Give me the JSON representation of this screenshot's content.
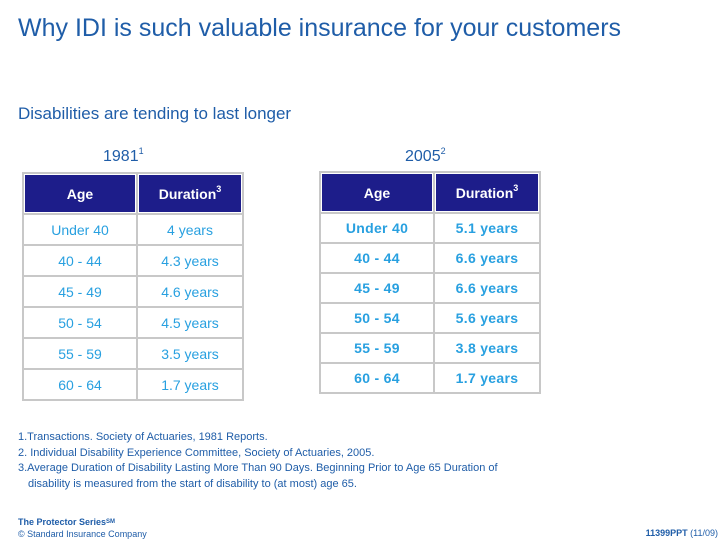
{
  "title": "Why IDI is such valuable insurance for your customers",
  "subtitle": "Disabilities are tending to last longer",
  "table_1981": {
    "year": "1981",
    "year_note": "1",
    "headers": {
      "age": "Age",
      "duration": "Duration",
      "duration_note": "3"
    },
    "rows": [
      {
        "age": "Under 40",
        "duration": "4 years"
      },
      {
        "age": "40 - 44",
        "duration": "4.3 years"
      },
      {
        "age": "45 - 49",
        "duration": "4.6 years"
      },
      {
        "age": "50 - 54",
        "duration": "4.5 years"
      },
      {
        "age": "55 - 59",
        "duration": "3.5 years"
      },
      {
        "age": "60 - 64",
        "duration": "1.7 years"
      }
    ]
  },
  "table_2005": {
    "year": "2005",
    "year_note": "2",
    "headers": {
      "age": "Age",
      "duration": "Duration",
      "duration_note": "3"
    },
    "rows": [
      {
        "age": "Under 40",
        "duration": "5.1 years"
      },
      {
        "age": "40 - 44",
        "duration": "6.6 years"
      },
      {
        "age": "45 - 49",
        "duration": "6.6 years"
      },
      {
        "age": "50 - 54",
        "duration": "5.6 years"
      },
      {
        "age": "55 - 59",
        "duration": "3.8 years"
      },
      {
        "age": "60 - 64",
        "duration": "1.7 years"
      }
    ]
  },
  "footnotes": [
    "1.Transactions. Society of Actuaries, 1981 Reports.",
    "2. Individual Disability Experience Committee, Society of Actuaries, 2005.",
    "3.Average Duration of Disability Lasting More Than 90 Days. Beginning Prior to Age 65 Duration of",
    "disability is measured from the start of disability to (at most) age 65."
  ],
  "footer": {
    "series": "The Protector Series",
    "series_mark": "SM",
    "copyright": "© Standard Insurance Company",
    "code": "11399PPT",
    "date": "(11/09)"
  }
}
